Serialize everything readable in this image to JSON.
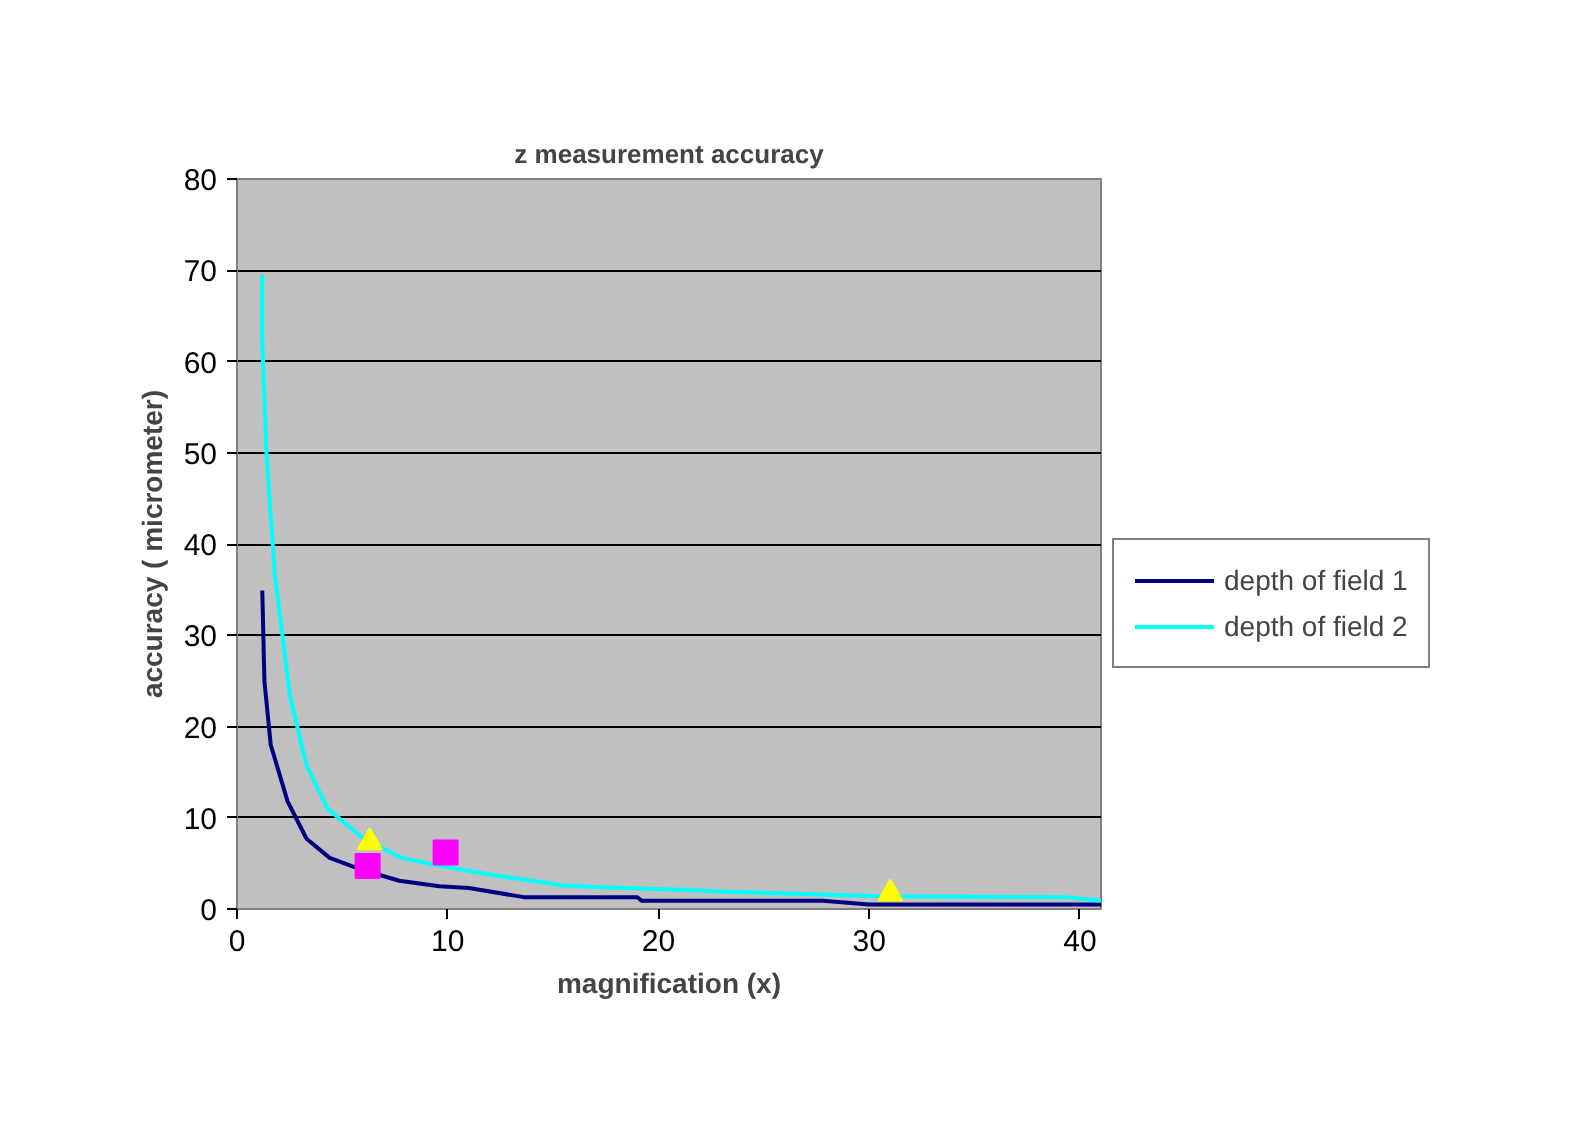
{
  "chart_data": {
    "type": "line",
    "title": "z measurement accuracy",
    "xlabel": "magnification (x)",
    "ylabel": "accuracy ( micrometer)",
    "xlim": [
      0,
      41
    ],
    "ylim": [
      0,
      80
    ],
    "xticks": [
      0,
      10,
      20,
      30,
      40
    ],
    "yticks": [
      0,
      10,
      20,
      30,
      40,
      50,
      60,
      70,
      80
    ],
    "grid": "y",
    "legend": "right",
    "series": [
      {
        "name": "depth of field 1",
        "color": "#000080",
        "x": [
          1.2,
          1.3,
          1.6,
          2.4,
          3.3,
          4.4,
          5.8,
          7.7,
          9.6,
          11,
          13.6,
          19,
          19.2,
          27.8,
          30,
          41
        ],
        "values": [
          34.9,
          25,
          18,
          11.8,
          7.7,
          5.6,
          4.4,
          3.1,
          2.5,
          2.3,
          1.3,
          1.3,
          0.9,
          0.9,
          0.5,
          0.5
        ]
      },
      {
        "name": "depth of field 2",
        "color": "#00ffff",
        "x": [
          1.2,
          1.2,
          1.4,
          1.8,
          2.5,
          3.3,
          4.3,
          5.9,
          7.8,
          9.7,
          12.2,
          15.4,
          17,
          21,
          23.2,
          30.5,
          39.3,
          41
        ],
        "values": [
          69.5,
          62.2,
          49.8,
          36.6,
          23.5,
          15.7,
          11,
          7.9,
          5.6,
          4.7,
          3.7,
          2.6,
          2.4,
          2.1,
          1.9,
          1.4,
          1.3,
          0.9
        ]
      },
      {
        "color": "#ff00ff",
        "type": "scatter",
        "marker": "square",
        "x": [
          6.2,
          9.9
        ],
        "values": [
          4.7,
          6.2
        ]
      },
      {
        "color": "#ffff00",
        "type": "scatter",
        "marker": "triangle",
        "x": [
          6.3,
          31
        ],
        "values": [
          7.3,
          1.7
        ]
      }
    ]
  }
}
